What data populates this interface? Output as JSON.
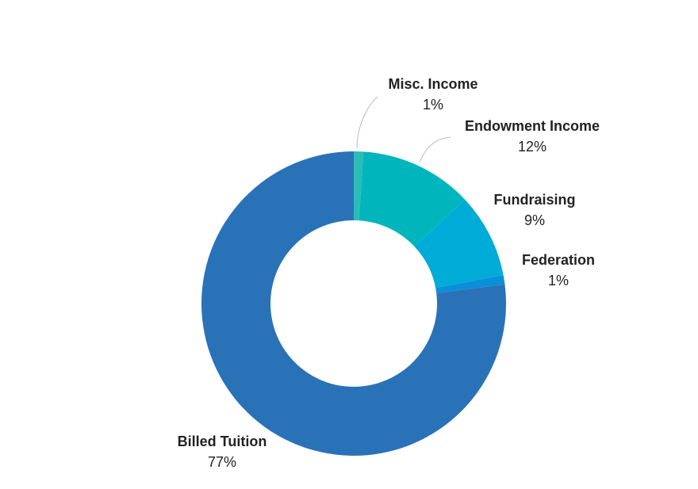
{
  "chart_data": {
    "type": "donut",
    "categories": [
      "Misc. Income",
      "Endowment Income",
      "Fundraising",
      "Federation",
      "Billed Tuition"
    ],
    "values": [
      1,
      12,
      9,
      1,
      77
    ],
    "value_labels": [
      "1%",
      "12%",
      "9%",
      "1%",
      "77%"
    ],
    "colors": [
      "#2bbcb6",
      "#00b6bc",
      "#00acd7",
      "#0a8fd8",
      "#2a72b8"
    ]
  }
}
